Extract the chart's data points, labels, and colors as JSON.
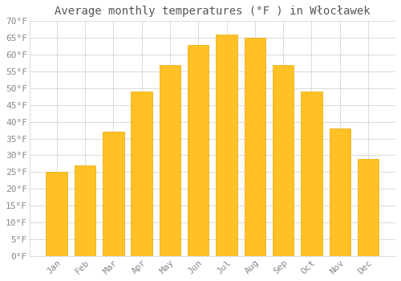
{
  "title": "Average monthly temperatures (°F ) in Włocławek",
  "months": [
    "Jan",
    "Feb",
    "Mar",
    "Apr",
    "May",
    "Jun",
    "Jul",
    "Aug",
    "Sep",
    "Oct",
    "Nov",
    "Dec"
  ],
  "values": [
    25,
    27,
    37,
    49,
    57,
    63,
    66,
    65,
    57,
    49,
    38,
    29
  ],
  "bar_color": "#FFC125",
  "bar_edge_color": "#FFD966",
  "bar_edge_color2": "#E8A800",
  "ylim": [
    0,
    70
  ],
  "yticks": [
    0,
    5,
    10,
    15,
    20,
    25,
    30,
    35,
    40,
    45,
    50,
    55,
    60,
    65,
    70
  ],
  "ytick_labels": [
    "0°F",
    "5°F",
    "10°F",
    "15°F",
    "20°F",
    "25°F",
    "30°F",
    "35°F",
    "40°F",
    "45°F",
    "50°F",
    "55°F",
    "60°F",
    "65°F",
    "70°F"
  ],
  "background_color": "#FFFFFF",
  "grid_color": "#DDDDDD",
  "title_fontsize": 10,
  "tick_fontsize": 8,
  "tick_color": "#888888",
  "title_color": "#555555",
  "bar_width": 0.75,
  "figsize": [
    5.0,
    3.5
  ],
  "dpi": 100
}
